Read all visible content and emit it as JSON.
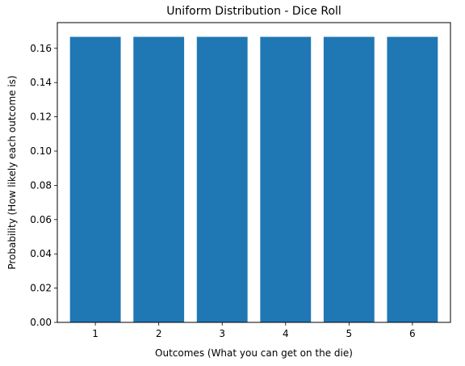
{
  "chart_data": {
    "type": "bar",
    "title": "Uniform Distribution - Dice Roll",
    "xlabel": "Outcomes (What you can get on the die)",
    "ylabel": "Probability (How likely each outcome is)",
    "categories": [
      "1",
      "2",
      "3",
      "4",
      "5",
      "6"
    ],
    "values": [
      0.1667,
      0.1667,
      0.1667,
      0.1667,
      0.1667,
      0.1667
    ],
    "ylim": [
      0,
      0.175
    ],
    "yticks": [
      0.0,
      0.02,
      0.04,
      0.06,
      0.08,
      0.1,
      0.12,
      0.14,
      0.16
    ],
    "ytick_labels": [
      "0.00",
      "0.02",
      "0.04",
      "0.06",
      "0.08",
      "0.10",
      "0.12",
      "0.14",
      "0.16"
    ],
    "bar_color": "#1f77b4",
    "grid": false,
    "legend": "none"
  }
}
